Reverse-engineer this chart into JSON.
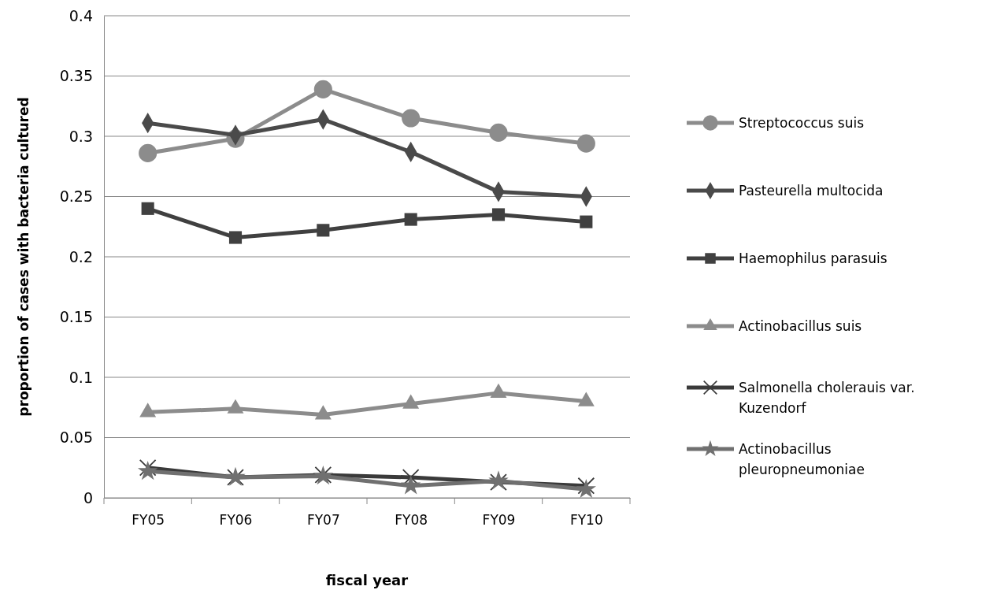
{
  "chart_data": {
    "type": "line",
    "xlabel": "fiscal year",
    "ylabel": "proportion of cases with bacteria cultured",
    "categories": [
      "FY05",
      "FY06",
      "FY07",
      "FY08",
      "FY09",
      "FY10"
    ],
    "series": [
      {
        "name": "Streptococcus suis",
        "color": "#8c8c8c",
        "marker": "circle",
        "values": [
          0.286,
          0.298,
          0.339,
          0.315,
          0.303,
          0.294
        ]
      },
      {
        "name": "Pasteurella multocida",
        "color": "#4a4a4a",
        "marker": "diamond",
        "values": [
          0.311,
          0.301,
          0.314,
          0.287,
          0.254,
          0.25
        ]
      },
      {
        "name": "Haemophilus parasuis",
        "color": "#404040",
        "marker": "square",
        "values": [
          0.24,
          0.216,
          0.222,
          0.231,
          0.235,
          0.229
        ]
      },
      {
        "name": "Actinobacillus suis",
        "color": "#8c8c8c",
        "marker": "triangle",
        "values": [
          0.071,
          0.074,
          0.069,
          0.078,
          0.087,
          0.08
        ]
      },
      {
        "name": "Salmonella cholerauis var. Kuzendorf",
        "color": "#3a3a3a",
        "marker": "cross",
        "values": [
          0.025,
          0.017,
          0.019,
          0.017,
          0.013,
          0.01
        ]
      },
      {
        "name": "Actinobacillus pleuropneumoniae",
        "color": "#707070",
        "marker": "star",
        "values": [
          0.022,
          0.017,
          0.018,
          0.01,
          0.014,
          0.007
        ]
      }
    ],
    "ylim": [
      0,
      0.4
    ],
    "yticks": [
      0,
      0.05,
      0.1,
      0.15,
      0.2,
      0.25,
      0.3,
      0.35,
      0.4
    ],
    "grid": "y",
    "legend": "right",
    "line_style": "solid"
  }
}
